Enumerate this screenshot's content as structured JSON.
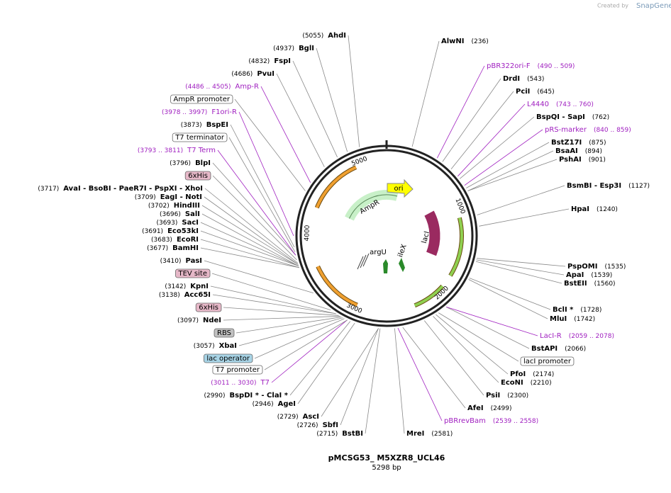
{
  "header": {
    "credit": "Created by",
    "brand": "SnapGene"
  },
  "map": {
    "title": "pMCSG53_ M5XZR8_UCL46",
    "length": "5298 bp",
    "ring_ticks": [
      "1000",
      "2000",
      "3000",
      "4000",
      "5000"
    ],
    "features": [
      "ori",
      "AmpR",
      "lacI",
      "argU",
      "ileX"
    ],
    "sites": [
      {
        "name": "AlwNI",
        "position": "(236)"
      },
      {
        "name": "DrdI",
        "position": "(543)"
      },
      {
        "name": "PciI",
        "position": "(645)"
      },
      {
        "name": "BspQI  - SapI",
        "position": "(762)"
      },
      {
        "name": "BstZ17I",
        "position": "(875)"
      },
      {
        "name": "BsaAI",
        "position": "(894)"
      },
      {
        "name": "PshAI",
        "position": "(901)"
      },
      {
        "name": "BsmBI  - Esp3I",
        "position": "(1127)"
      },
      {
        "name": "HpaI",
        "position": "(1240)"
      },
      {
        "name": "PspOMI",
        "position": "(1535)"
      },
      {
        "name": "ApaI",
        "position": "(1539)"
      },
      {
        "name": "BstEII",
        "position": "(1560)"
      },
      {
        "name": "BclI *",
        "position": "(1728)"
      },
      {
        "name": "MluI",
        "position": "(1742)"
      },
      {
        "name": "BstAPI",
        "position": "(2066)"
      },
      {
        "name": "PfoI",
        "position": "(2174)"
      },
      {
        "name": "EcoNI",
        "position": "(2210)"
      },
      {
        "name": "PsiI",
        "position": "(2300)"
      },
      {
        "name": "AfeI",
        "position": "(2499)"
      },
      {
        "name": "MreI",
        "position": "(2581)"
      },
      {
        "name": "AhdI",
        "position": "(5055)"
      },
      {
        "name": "BglI",
        "position": "(4937)"
      },
      {
        "name": "FspI",
        "position": "(4832)"
      },
      {
        "name": "PvuI",
        "position": "(4686)"
      },
      {
        "name": "BspEI",
        "position": "(3873)"
      },
      {
        "name": "BlpI",
        "position": "(3796)"
      },
      {
        "name": "AvaI  - BsoBI  - PaeR7I  - PspXI  - XhoI",
        "position": "(3717)"
      },
      {
        "name": "EagI  - NotI",
        "position": "(3709)"
      },
      {
        "name": "HindIII",
        "position": "(3702)"
      },
      {
        "name": "SalI",
        "position": "(3696)"
      },
      {
        "name": "SacI",
        "position": "(3693)"
      },
      {
        "name": "Eco53kI",
        "position": "(3691)"
      },
      {
        "name": "EcoRI",
        "position": "(3683)"
      },
      {
        "name": "BamHI",
        "position": "(3677)"
      },
      {
        "name": "PasI",
        "position": "(3410)"
      },
      {
        "name": "KpnI",
        "position": "(3142)"
      },
      {
        "name": "Acc65I",
        "position": "(3138)"
      },
      {
        "name": "NdeI",
        "position": "(3097)"
      },
      {
        "name": "XbaI",
        "position": "(3057)"
      },
      {
        "name": "BspDI *  - ClaI *",
        "position": "(2990)"
      },
      {
        "name": "AgeI",
        "position": "(2946)"
      },
      {
        "name": "AscI",
        "position": "(2729)"
      },
      {
        "name": "SbfI",
        "position": "(2726)"
      },
      {
        "name": "BstBI",
        "position": "(2715)"
      }
    ],
    "primers": [
      {
        "name": "pBR322ori-F",
        "range": "(490 .. 509)"
      },
      {
        "name": "L4440",
        "range": "(743 .. 760)"
      },
      {
        "name": "pRS-marker",
        "range": "(840 .. 859)"
      },
      {
        "name": "LacI-R",
        "range": "(2059 .. 2078)"
      },
      {
        "name": "pBRrevBam",
        "range": "(2539 .. 2558)"
      },
      {
        "name": "Amp-R",
        "range": "(4486 .. 4505)"
      },
      {
        "name": "F1ori-R",
        "range": "(3978 .. 3997)"
      },
      {
        "name": "T7 Term",
        "range": "(3793 .. 3811)"
      },
      {
        "name": "T7",
        "range": "(3011 .. 3030)"
      }
    ],
    "feature_boxes": [
      {
        "name": "AmpR promoter",
        "color": "#ffffff"
      },
      {
        "name": "T7 terminator",
        "color": "#ffffff"
      },
      {
        "name": "6xHis",
        "color": "#e6b8c8"
      },
      {
        "name": "TEV site",
        "color": "#e6b8c8"
      },
      {
        "name": "6xHis",
        "color": "#e6b8c8"
      },
      {
        "name": "RBS",
        "color": "#c0c0c0"
      },
      {
        "name": "lac operator",
        "color": "#a8d4e6"
      },
      {
        "name": "T7 promoter",
        "color": "#ffffff"
      },
      {
        "name": "lacI promoter",
        "color": "#ffffff"
      }
    ]
  }
}
